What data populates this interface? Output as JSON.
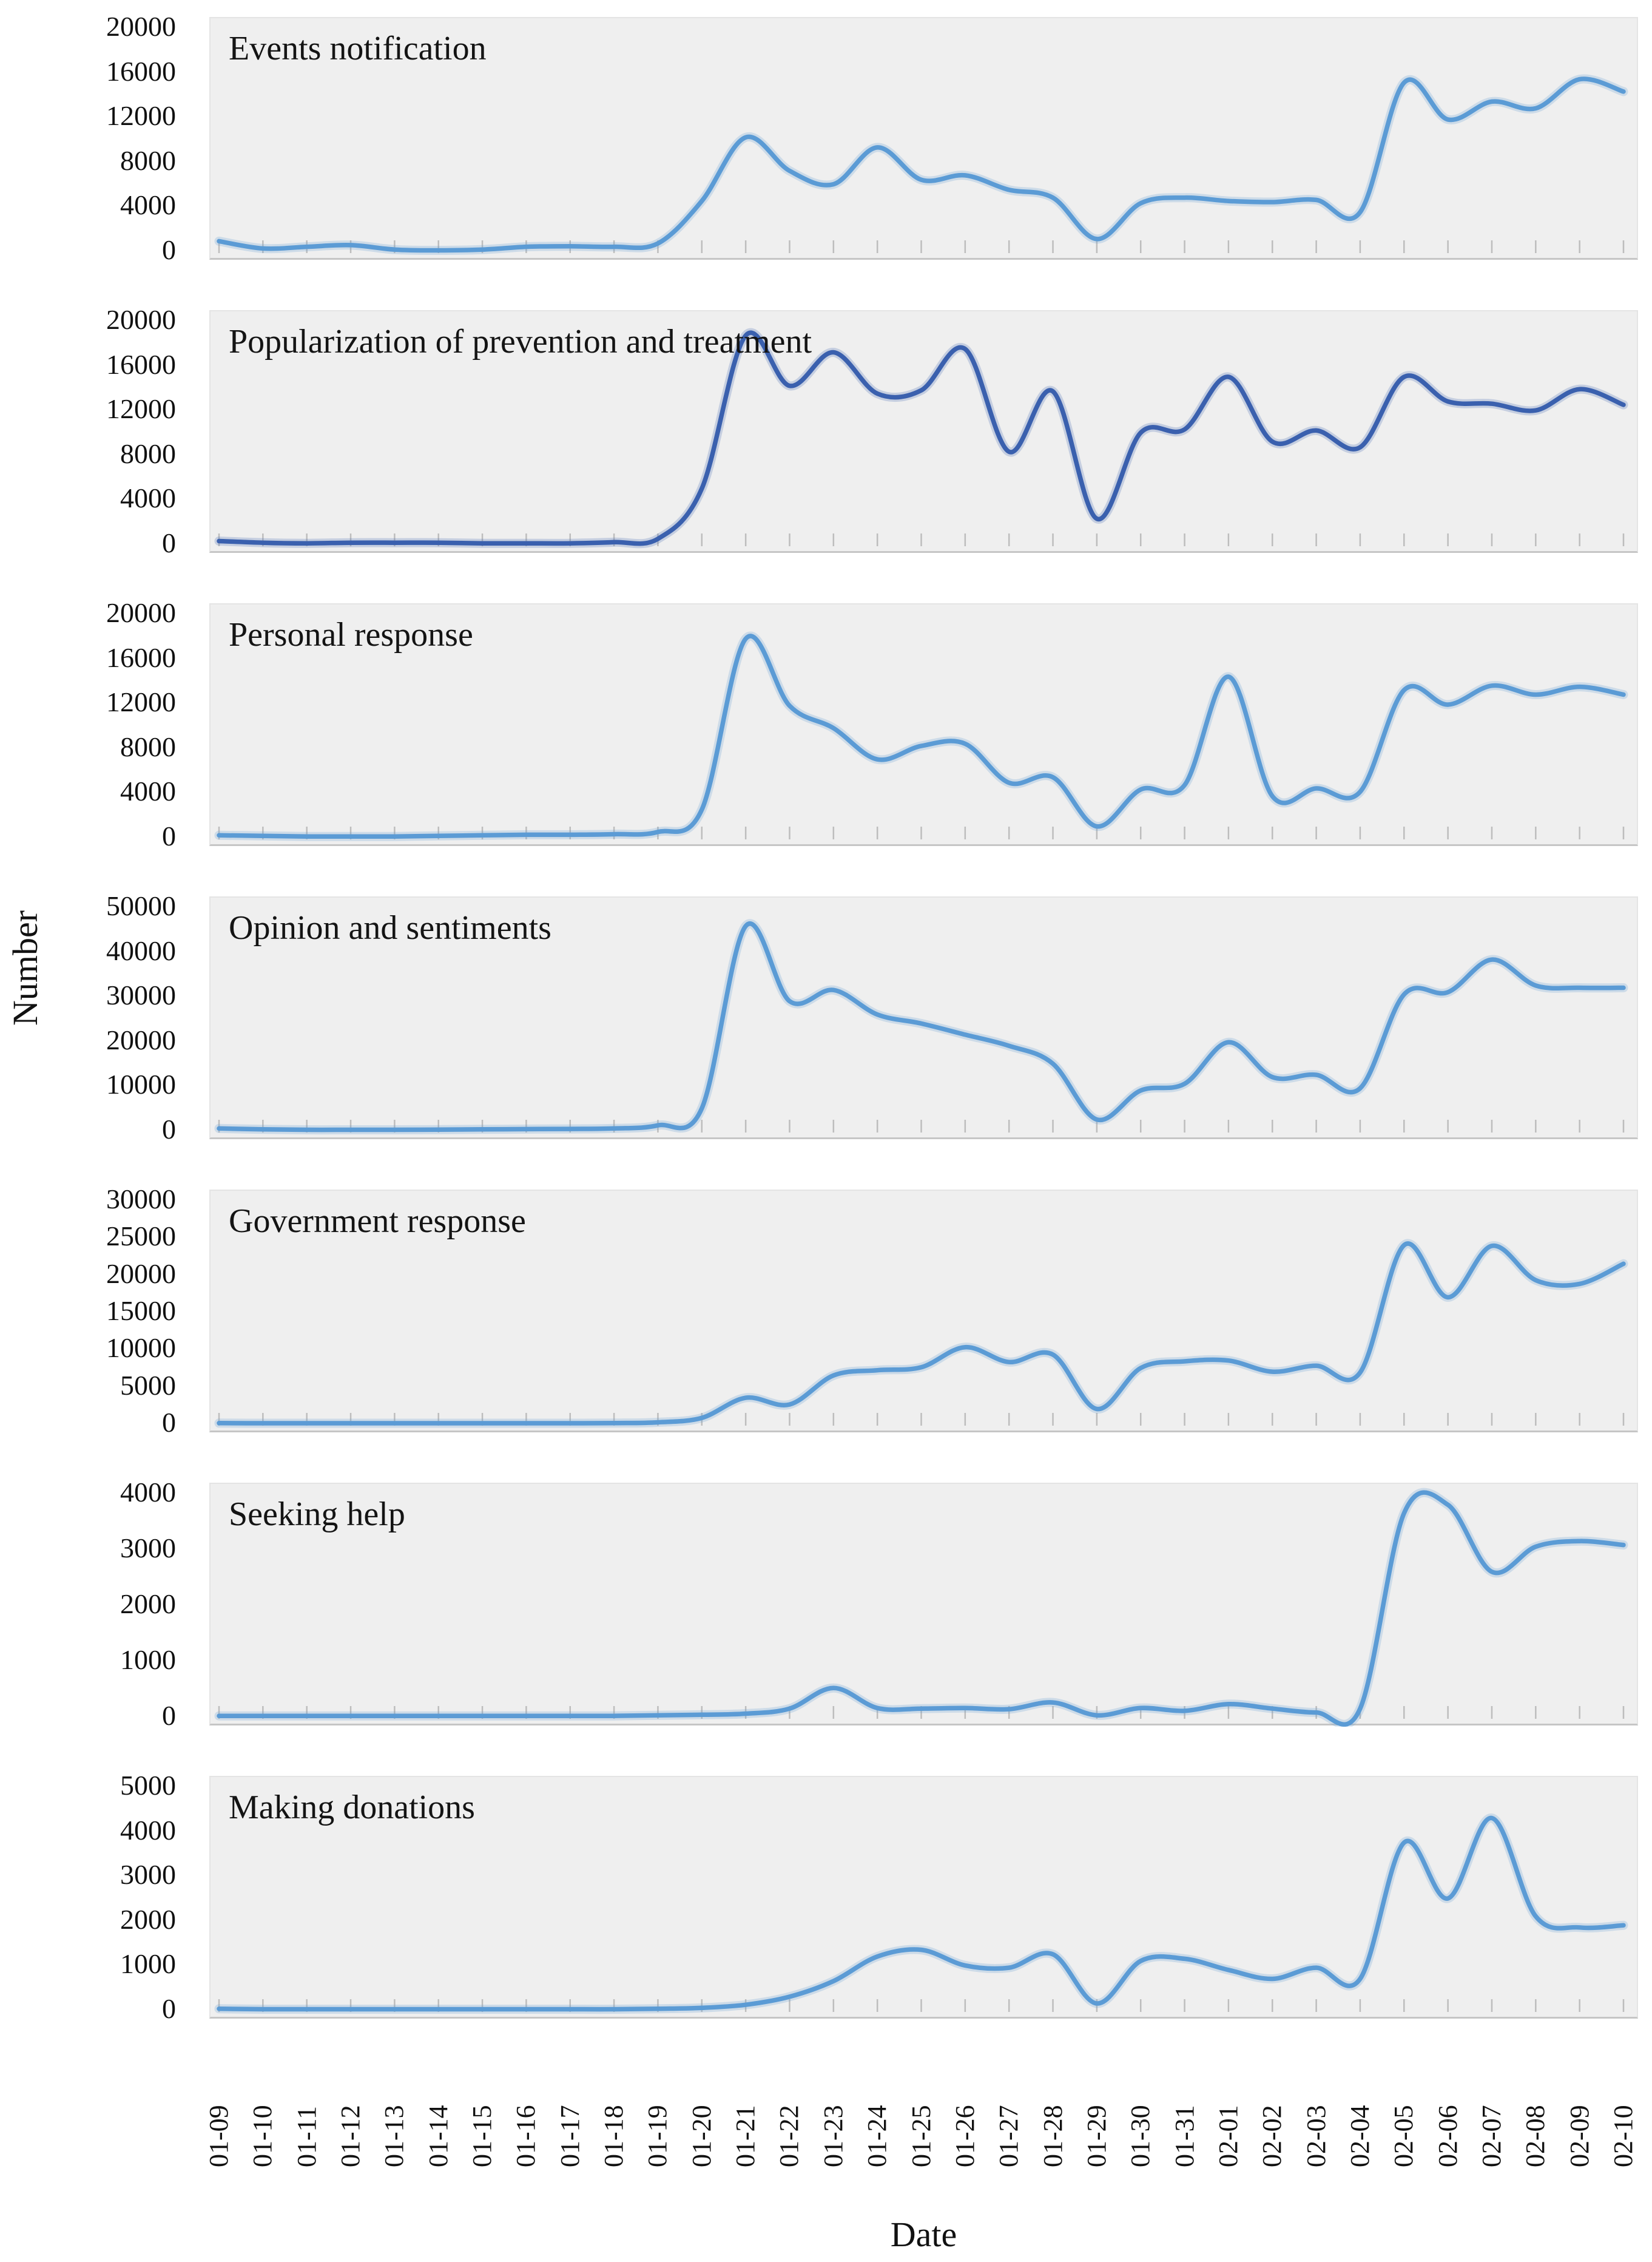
{
  "figure": {
    "plot_background": "#efefef",
    "axis_tick_color": "#bdbdbd",
    "text_color": "#111111",
    "accent_light_blue": "#5B9BD5",
    "accent_dark_blue": "#3A60AE"
  },
  "chart_data": {
    "type": "line",
    "layout": "7 vertically stacked panels sharing one x axis",
    "legend_position": "none",
    "grid": false,
    "xlabel": "Date",
    "ylabel": "Number",
    "categories": [
      "01-09",
      "01-10",
      "01-11",
      "01-12",
      "01-13",
      "01-14",
      "01-15",
      "01-16",
      "01-17",
      "01-18",
      "01-19",
      "01-20",
      "01-21",
      "01-22",
      "01-23",
      "01-24",
      "01-25",
      "01-26",
      "01-27",
      "01-28",
      "01-29",
      "01-30",
      "01-31",
      "02-01",
      "02-02",
      "02-03",
      "02-04",
      "02-05",
      "02-06",
      "02-07",
      "02-08",
      "02-09",
      "02-10"
    ],
    "panels": [
      {
        "title": "Events notification",
        "ylim": [
          0,
          20000
        ],
        "ytick_labels": [
          "20000",
          "16000",
          "12000",
          "8000",
          "4000",
          "0"
        ],
        "color": "#5B9BD5",
        "values": [
          900,
          250,
          400,
          550,
          150,
          80,
          150,
          400,
          450,
          400,
          700,
          4500,
          10200,
          7200,
          6000,
          9300,
          6400,
          6800,
          5500,
          4800,
          1100,
          4300,
          4800,
          4500,
          4400,
          4600,
          3500,
          15100,
          11800,
          13400,
          12800,
          15400,
          14300
        ]
      },
      {
        "title": "Popularization of prevention and treatment",
        "ylim": [
          0,
          20000
        ],
        "ytick_labels": [
          "20000",
          "16000",
          "12000",
          "8000",
          "4000",
          "0"
        ],
        "color": "#3A60AE",
        "values": [
          300,
          150,
          100,
          150,
          150,
          150,
          100,
          100,
          100,
          200,
          500,
          5000,
          18700,
          14200,
          17200,
          13500,
          13800,
          17500,
          8300,
          13700,
          2300,
          10000,
          10300,
          15000,
          9200,
          10200,
          8700,
          15000,
          12800,
          12600,
          12000,
          13900,
          12500
        ]
      },
      {
        "title": "Personal response",
        "ylim": [
          0,
          20000
        ],
        "ytick_labels": [
          "20000",
          "16000",
          "12000",
          "8000",
          "4000",
          "0"
        ],
        "color": "#5B9BD5",
        "values": [
          200,
          150,
          100,
          100,
          100,
          150,
          200,
          250,
          250,
          300,
          500,
          2500,
          17800,
          11800,
          9800,
          7000,
          8200,
          8400,
          4900,
          5400,
          1000,
          4300,
          4700,
          14400,
          3700,
          4400,
          4100,
          13200,
          11900,
          13600,
          12800,
          13500,
          12800
        ]
      },
      {
        "title": "Opinion and sentiments",
        "ylim": [
          0,
          50000
        ],
        "ytick_labels": [
          "50000",
          "40000",
          "30000",
          "20000",
          "10000",
          "0"
        ],
        "color": "#5B9BD5",
        "values": [
          500,
          300,
          200,
          200,
          200,
          250,
          300,
          350,
          400,
          500,
          1200,
          5000,
          45800,
          29000,
          31500,
          26000,
          24000,
          21500,
          19000,
          15000,
          2500,
          9000,
          10500,
          19800,
          12000,
          12500,
          9500,
          30500,
          31000,
          38300,
          32500,
          32000,
          32000
        ]
      },
      {
        "title": "Government response",
        "ylim": [
          0,
          30000
        ],
        "ytick_labels": [
          "30000",
          "25000",
          "20000",
          "15000",
          "10000",
          "5000",
          "0"
        ],
        "color": "#5B9BD5",
        "values": [
          100,
          80,
          80,
          80,
          80,
          80,
          80,
          80,
          80,
          100,
          200,
          800,
          3500,
          2600,
          6500,
          7200,
          7600,
          10300,
          8300,
          9300,
          2000,
          7500,
          8400,
          8500,
          7000,
          7800,
          6900,
          24000,
          17000,
          23900,
          19300,
          18800,
          21500
        ]
      },
      {
        "title": "Seeking help",
        "ylim": [
          0,
          4000
        ],
        "ytick_labels": [
          "4000",
          "3000",
          "2000",
          "1000",
          "0"
        ],
        "color": "#5B9BD5",
        "values": [
          20,
          20,
          20,
          20,
          20,
          20,
          20,
          20,
          20,
          20,
          30,
          40,
          60,
          150,
          520,
          160,
          150,
          160,
          140,
          260,
          30,
          160,
          110,
          230,
          150,
          80,
          150,
          3650,
          3800,
          2600,
          3050,
          3150,
          3080
        ]
      },
      {
        "title": "Making donations",
        "ylim": [
          0,
          5000
        ],
        "ytick_labels": [
          "5000",
          "4000",
          "3000",
          "2000",
          "1000",
          "0"
        ],
        "color": "#5B9BD5",
        "values": [
          30,
          20,
          20,
          20,
          20,
          20,
          20,
          20,
          20,
          20,
          30,
          50,
          120,
          300,
          650,
          1200,
          1350,
          1000,
          950,
          1250,
          150,
          1100,
          1150,
          900,
          700,
          950,
          700,
          3750,
          2500,
          4300,
          2100,
          1850,
          1900
        ]
      }
    ]
  }
}
